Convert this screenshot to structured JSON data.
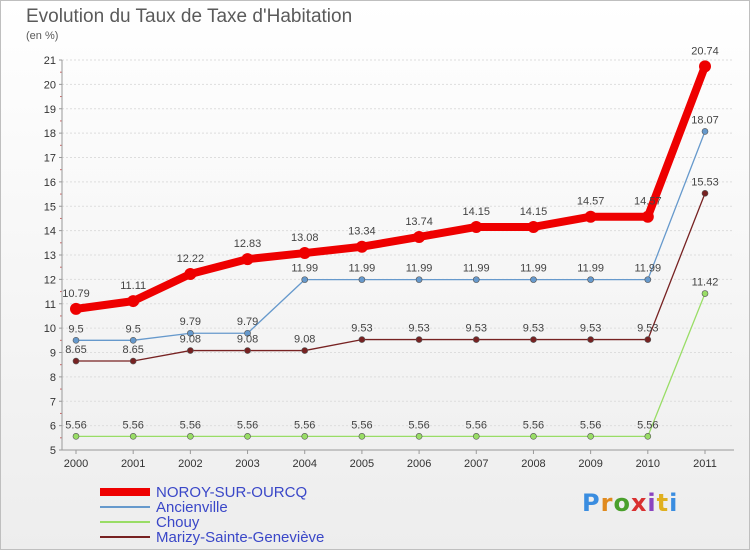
{
  "chart_data": {
    "type": "line",
    "title": "Evolution du Taux de Taxe d'Habitation",
    "subtitle": "(en %)",
    "categories": [
      "2000",
      "2001",
      "2002",
      "2003",
      "2004",
      "2005",
      "2006",
      "2007",
      "2008",
      "2009",
      "2010",
      "2011"
    ],
    "ylim": [
      5,
      21
    ],
    "yticks": [
      "5",
      "6",
      "7",
      "8",
      "9",
      "10",
      "11",
      "12",
      "13",
      "14",
      "15",
      "16",
      "17",
      "18",
      "19",
      "20",
      "21"
    ],
    "grid": "horizontal",
    "legend_position": "bottom-left",
    "series": [
      {
        "name": "NOROY-SUR-OURCQ",
        "color": "#ee0000",
        "values": [
          10.79,
          11.11,
          12.22,
          12.83,
          13.08,
          13.34,
          13.74,
          14.15,
          14.15,
          14.57,
          14.57,
          20.74
        ],
        "labels": [
          "10.79",
          "11.11",
          "12.22",
          "12.83",
          "13.08",
          "13.34",
          "13.74",
          "14.15",
          "14.15",
          "14.57",
          "14.57",
          "20.74"
        ]
      },
      {
        "name": "Ancienville",
        "color": "#6699cc",
        "values": [
          9.5,
          9.5,
          9.79,
          9.79,
          11.99,
          11.99,
          11.99,
          11.99,
          11.99,
          11.99,
          11.99,
          18.07
        ],
        "labels": [
          "9.5",
          "9.5",
          "9.79",
          "9.79",
          "11.99",
          "11.99",
          "11.99",
          "11.99",
          "11.99",
          "11.99",
          "11.99",
          "18.07"
        ]
      },
      {
        "name": "Chouy",
        "color": "#99dd66",
        "values": [
          5.56,
          5.56,
          5.56,
          5.56,
          5.56,
          5.56,
          5.56,
          5.56,
          5.56,
          5.56,
          5.56,
          11.42
        ],
        "labels": [
          "5.56",
          "5.56",
          "5.56",
          "5.56",
          "5.56",
          "5.56",
          "5.56",
          "5.56",
          "5.56",
          "5.56",
          "5.56",
          "11.42"
        ]
      },
      {
        "name": "Marizy-Sainte-Geneviève",
        "color": "#772222",
        "values": [
          8.65,
          8.65,
          9.08,
          9.08,
          9.08,
          9.53,
          9.53,
          9.53,
          9.53,
          9.53,
          9.53,
          15.53
        ],
        "labels": [
          "8.65",
          "8.65",
          "9.08",
          "9.08",
          "9.08",
          "9.53",
          "9.53",
          "9.53",
          "9.53",
          "9.53",
          "9.53",
          "15.53"
        ]
      }
    ]
  },
  "brand": {
    "text": "Proxiti",
    "colors": [
      "#3a8de0",
      "#e08a1e",
      "#4aa02c",
      "#d93030",
      "#8a44c0",
      "#e0b020",
      "#3a8de0"
    ]
  }
}
